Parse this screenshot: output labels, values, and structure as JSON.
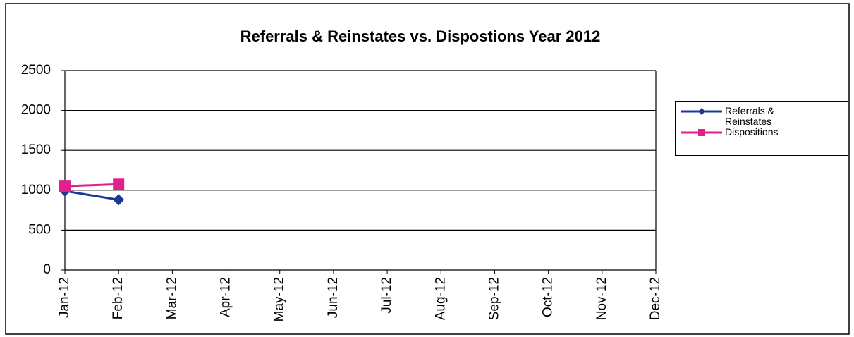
{
  "chart_data": {
    "type": "line",
    "title": "Referrals & Reinstates vs. Dispostions  Year 2012",
    "categories": [
      "Jan-12",
      "Feb-12",
      "Mar-12",
      "Apr-12",
      "May-12",
      "Jun-12",
      "Jul-12",
      "Aug-12",
      "Sep-12",
      "Oct-12",
      "Nov-12",
      "Dec-12"
    ],
    "series": [
      {
        "name": "Referrals & Reinstates",
        "color": "#1c3a94",
        "marker": "diamond",
        "values": [
          990,
          880,
          null,
          null,
          null,
          null,
          null,
          null,
          null,
          null,
          null,
          null
        ]
      },
      {
        "name": "Dispositions",
        "color": "#e0208c",
        "marker": "square",
        "values": [
          1050,
          1075,
          null,
          null,
          null,
          null,
          null,
          null,
          null,
          null,
          null,
          null
        ]
      }
    ],
    "ylim": [
      0,
      2500
    ],
    "yticks": [
      0,
      500,
      1000,
      1500,
      2000,
      2500
    ],
    "grid": true,
    "legend": "right"
  }
}
